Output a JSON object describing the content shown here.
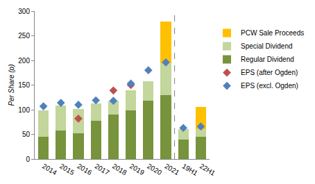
{
  "chart_data": {
    "type": "bar",
    "stacked": true,
    "grid": false,
    "legend": "right",
    "y_label": "Per Share (p)",
    "categories": [
      "2014",
      "2015",
      "2016",
      "2017",
      "2018",
      "2019",
      "2020",
      "2021",
      "19H1",
      "22H1"
    ],
    "ylim": [
      0,
      300
    ],
    "yticks": [
      0,
      50,
      100,
      150,
      200,
      250,
      300
    ],
    "series": [
      {
        "name": "PCW Sale Proceeds",
        "type": "bar",
        "color": "#ffc000",
        "values": [
          0,
          0,
          0,
          0,
          0,
          0,
          0,
          85,
          0,
          45
        ]
      },
      {
        "name": "Special Dividend",
        "type": "bar",
        "color": "#c3d69b",
        "values": [
          53,
          50,
          50,
          35,
          28,
          42,
          40,
          64,
          20,
          15
        ]
      },
      {
        "name": "Regular Dividend",
        "type": "bar",
        "color": "#77933c",
        "values": [
          45,
          58,
          52,
          77,
          90,
          98,
          118,
          130,
          40,
          45
        ]
      },
      {
        "name": "EPS (after Ogden)",
        "type": "scatter",
        "marker": "diamond",
        "color": "#c0504d",
        "values": [
          null,
          null,
          82,
          null,
          139,
          150,
          null,
          null,
          null,
          null
        ]
      },
      {
        "name": "EPS (excl. Ogden)",
        "type": "scatter",
        "marker": "diamond",
        "color": "#4f81bd",
        "values": [
          107,
          114,
          110,
          119,
          118,
          153,
          180,
          196,
          63,
          66
        ]
      }
    ]
  }
}
